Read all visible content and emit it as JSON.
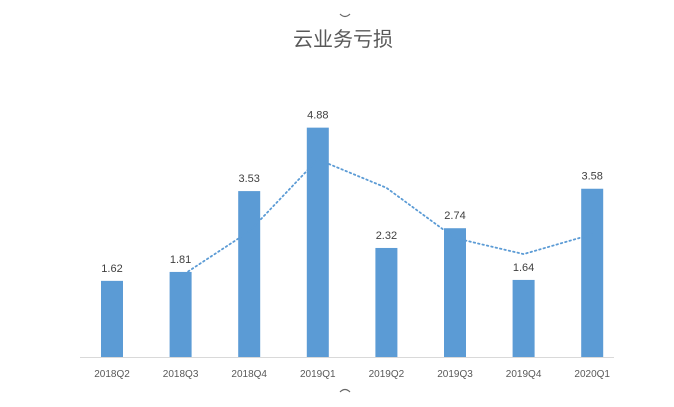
{
  "chart_data": {
    "type": "bar",
    "title": "云业务亏损",
    "categories": [
      "2018Q2",
      "2018Q3",
      "2018Q4",
      "2019Q1",
      "2019Q2",
      "2019Q3",
      "2019Q4",
      "2020Q1"
    ],
    "values": [
      1.62,
      1.81,
      3.53,
      4.88,
      2.32,
      2.74,
      1.64,
      3.58
    ],
    "value_labels": [
      "1.62",
      "1.81",
      "3.53",
      "4.88",
      "2.32",
      "2.74",
      "1.64",
      "3.58"
    ],
    "trendline": {
      "type": "moving-average",
      "period": 2,
      "style": "dotted",
      "color": "#5b9bd5"
    },
    "xlabel": "",
    "ylabel": "",
    "ylim": [
      0,
      5
    ],
    "grid": false,
    "legend": "none",
    "bar_color": "#5b9bd5",
    "axis_color": "#d9d9d9"
  }
}
